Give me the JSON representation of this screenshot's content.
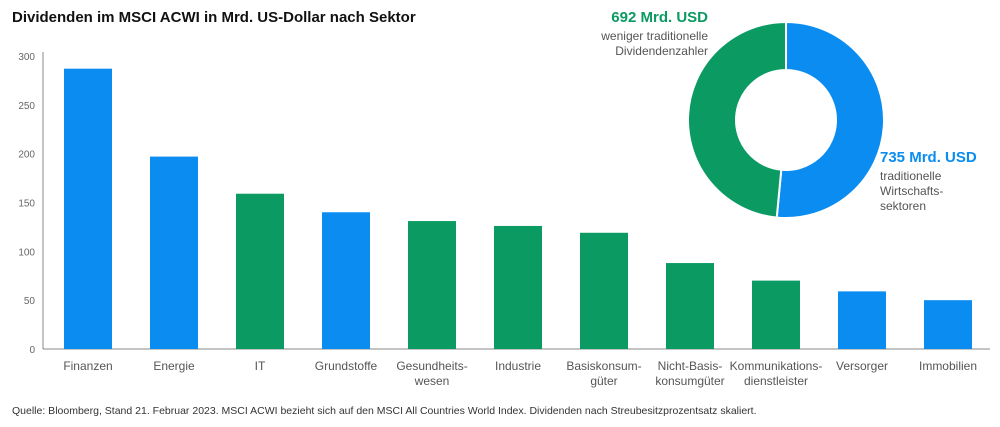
{
  "title": "Dividenden im MSCI ACWI in Mrd. US-Dollar nach Sektor",
  "source": "Quelle: Bloomberg, Stand 21. Februar 2023. MSCI ACWI bezieht sich auf den MSCI All Countries World Index. Dividenden nach Streubesitzprozentsatz skaliert.",
  "colors": {
    "traditional": "#0a8cf0",
    "non_traditional": "#0a9a62"
  },
  "chart_data": [
    {
      "type": "bar",
      "title": "Dividenden im MSCI ACWI in Mrd. US-Dollar nach Sektor",
      "xlabel": "",
      "ylabel": "",
      "ylim": [
        0,
        300
      ],
      "yticks": [
        0,
        50,
        100,
        150,
        200,
        250,
        300
      ],
      "categories": [
        [
          "Finanzen"
        ],
        [
          "Energie"
        ],
        [
          "IT"
        ],
        [
          "Grundstoffe"
        ],
        [
          "Gesundheits-",
          "wesen"
        ],
        [
          "Industrie"
        ],
        [
          "Basiskonsum-",
          "güter"
        ],
        [
          "Nicht-Basis-",
          "konsumgüter"
        ],
        [
          "Kommunikations-",
          "dienstleister"
        ],
        [
          "Versorger"
        ],
        [
          "Immobilien"
        ]
      ],
      "values": [
        287,
        197,
        159,
        140,
        131,
        126,
        119,
        88,
        70,
        59,
        50
      ],
      "groups": [
        "traditional",
        "traditional",
        "non_traditional",
        "traditional",
        "non_traditional",
        "non_traditional",
        "non_traditional",
        "non_traditional",
        "non_traditional",
        "traditional",
        "traditional"
      ],
      "grid": false
    },
    {
      "type": "pie",
      "donut": true,
      "slices": [
        {
          "key": "traditional",
          "value": 735,
          "label": "735 Mrd. USD",
          "desc": [
            "traditionelle",
            "Wirtschafts-",
            "sektoren"
          ]
        },
        {
          "key": "non_traditional",
          "value": 692,
          "label": "692 Mrd. USD",
          "desc": [
            "weniger traditionelle",
            "Dividendenzahler"
          ]
        }
      ]
    }
  ]
}
